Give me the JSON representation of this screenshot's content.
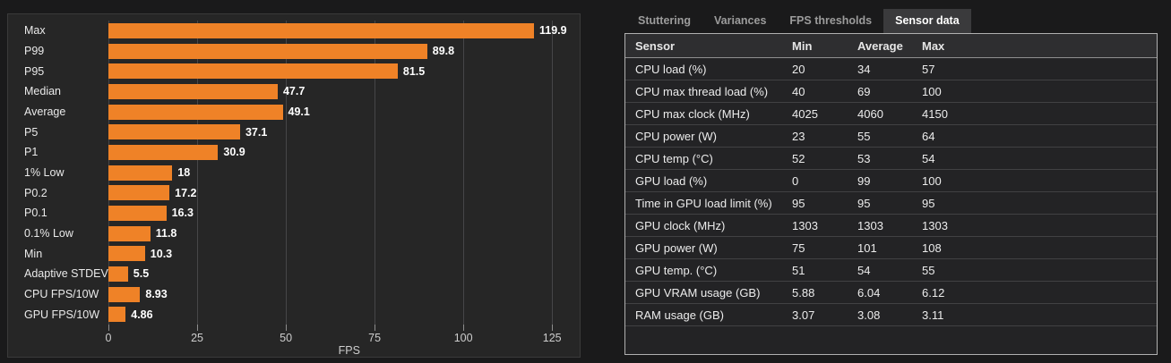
{
  "colors": {
    "bar": "#EF8227",
    "outer_bg": "#1a1a1b",
    "chart_panel_bg": "#262626",
    "table_bg": "#232325",
    "table_header_bg": "#2e2e30",
    "tab_active_bg": "#3a3a3c"
  },
  "chart_data": {
    "type": "bar",
    "orientation": "horizontal",
    "title": "",
    "xlabel": "FPS",
    "ylabel": "",
    "xlim": [
      0,
      130.5
    ],
    "xticks": [
      0,
      25,
      50,
      75,
      100,
      125
    ],
    "grid": true,
    "bar_color": "#EF8227",
    "categories": [
      "Max",
      "P99",
      "P95",
      "Median",
      "Average",
      "P5",
      "P1",
      "1% Low",
      "P0.2",
      "P0.1",
      "0.1% Low",
      "Min",
      "Adaptive STDEV",
      "CPU FPS/10W",
      "GPU FPS/10W"
    ],
    "values": [
      119.9,
      89.8,
      81.5,
      47.7,
      49.1,
      37.1,
      30.9,
      18,
      17.2,
      16.3,
      11.8,
      10.3,
      5.5,
      8.93,
      4.86
    ],
    "value_labels": [
      "119.9",
      "89.8",
      "81.5",
      "47.7",
      "49.1",
      "37.1",
      "30.9",
      "18",
      "17.2",
      "16.3",
      "11.8",
      "10.3",
      "5.5",
      "8.93",
      "4.86"
    ]
  },
  "sensor_panel": {
    "tabs": [
      {
        "id": "stuttering",
        "label": "Stuttering",
        "active": false
      },
      {
        "id": "variances",
        "label": "Variances",
        "active": false
      },
      {
        "id": "fps-thresholds",
        "label": "FPS thresholds",
        "active": false
      },
      {
        "id": "sensor-data",
        "label": "Sensor data",
        "active": true
      }
    ],
    "table": {
      "columns": [
        "Sensor",
        "Min",
        "Average",
        "Max"
      ],
      "rows": [
        [
          "CPU load (%)",
          "20",
          "34",
          "57"
        ],
        [
          "CPU max thread load (%)",
          "40",
          "69",
          "100"
        ],
        [
          "CPU max clock (MHz)",
          "4025",
          "4060",
          "4150"
        ],
        [
          "CPU power (W)",
          "23",
          "55",
          "64"
        ],
        [
          "CPU temp (°C)",
          "52",
          "53",
          "54"
        ],
        [
          "GPU load (%)",
          "0",
          "99",
          "100"
        ],
        [
          "Time in GPU load limit (%)",
          "95",
          "95",
          "95"
        ],
        [
          "GPU clock (MHz)",
          "1303",
          "1303",
          "1303"
        ],
        [
          "GPU power (W)",
          "75",
          "101",
          "108"
        ],
        [
          "GPU temp. (°C)",
          "51",
          "54",
          "55"
        ],
        [
          "GPU VRAM usage (GB)",
          "5.88",
          "6.04",
          "6.12"
        ],
        [
          "RAM usage (GB)",
          "3.07",
          "3.08",
          "3.11"
        ]
      ]
    }
  }
}
